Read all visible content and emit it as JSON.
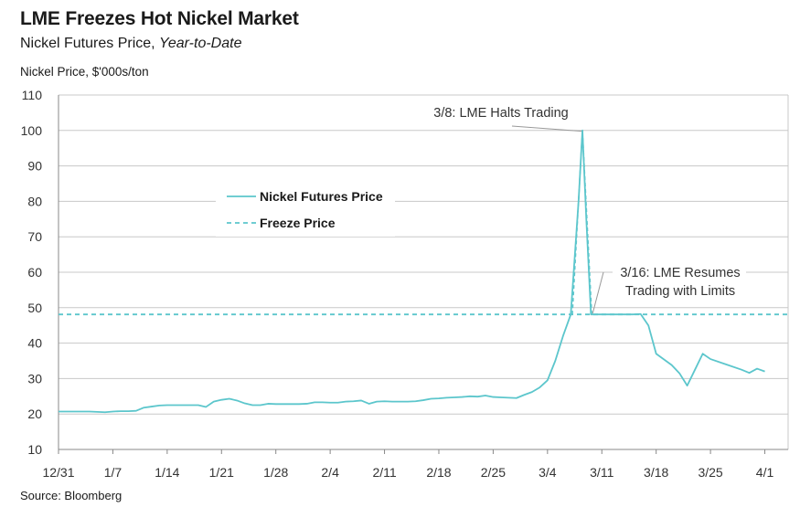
{
  "header": {
    "title": "LME Freezes Hot Nickel Market",
    "subtitle_main": "Nickel Futures Price, ",
    "subtitle_italic": "Year-to-Date",
    "y_axis_label": "Nickel Price, $'000s/ton",
    "source": "Source: Bloomberg"
  },
  "colors": {
    "series": "#5cc6cc",
    "grid": "#c8c8c8",
    "axis": "#888888",
    "annotation_line": "#999999"
  },
  "chart_data": {
    "type": "line",
    "title": "LME Freezes Hot Nickel Market",
    "subtitle": "Nickel Futures Price, Year-to-Date",
    "ylabel": "Nickel Price, $'000s/ton",
    "xlabel": "",
    "ylim": [
      10,
      110
    ],
    "yticks": [
      10,
      20,
      30,
      40,
      50,
      60,
      70,
      80,
      90,
      100,
      110
    ],
    "x_domain_days": [
      0,
      94
    ],
    "xticks": [
      {
        "day": 0,
        "label": "12/31"
      },
      {
        "day": 7,
        "label": "1/7"
      },
      {
        "day": 14,
        "label": "1/14"
      },
      {
        "day": 21,
        "label": "1/21"
      },
      {
        "day": 28,
        "label": "1/28"
      },
      {
        "day": 35,
        "label": "2/4"
      },
      {
        "day": 42,
        "label": "2/11"
      },
      {
        "day": 49,
        "label": "2/18"
      },
      {
        "day": 56,
        "label": "2/25"
      },
      {
        "day": 63,
        "label": "3/4"
      },
      {
        "day": 70,
        "label": "3/11"
      },
      {
        "day": 77,
        "label": "3/18"
      },
      {
        "day": 84,
        "label": "3/25"
      },
      {
        "day": 91,
        "label": "4/1"
      }
    ],
    "grid": true,
    "legend_position": "upper-left",
    "series": [
      {
        "name": "Nickel Futures Price",
        "style": "solid",
        "points": [
          [
            0,
            20.7
          ],
          [
            1,
            20.7
          ],
          [
            2,
            20.7
          ],
          [
            3,
            20.7
          ],
          [
            4,
            20.7
          ],
          [
            5,
            20.6
          ],
          [
            6,
            20.5
          ],
          [
            7,
            20.7
          ],
          [
            8,
            20.8
          ],
          [
            9,
            20.8
          ],
          [
            10,
            20.9
          ],
          [
            11,
            21.8
          ],
          [
            12,
            22.1
          ],
          [
            13,
            22.4
          ],
          [
            14,
            22.5
          ],
          [
            15,
            22.5
          ],
          [
            16,
            22.5
          ],
          [
            17,
            22.5
          ],
          [
            18,
            22.5
          ],
          [
            19,
            22.0
          ],
          [
            20,
            23.5
          ],
          [
            21,
            24.0
          ],
          [
            22,
            24.3
          ],
          [
            23,
            23.8
          ],
          [
            24,
            23.0
          ],
          [
            25,
            22.5
          ],
          [
            26,
            22.5
          ],
          [
            27,
            22.9
          ],
          [
            28,
            22.8
          ],
          [
            29,
            22.8
          ],
          [
            30,
            22.8
          ],
          [
            31,
            22.8
          ],
          [
            32,
            22.9
          ],
          [
            33,
            23.3
          ],
          [
            34,
            23.3
          ],
          [
            35,
            23.2
          ],
          [
            36,
            23.2
          ],
          [
            37,
            23.5
          ],
          [
            38,
            23.6
          ],
          [
            39,
            23.8
          ],
          [
            40,
            22.9
          ],
          [
            41,
            23.5
          ],
          [
            42,
            23.6
          ],
          [
            43,
            23.5
          ],
          [
            44,
            23.5
          ],
          [
            45,
            23.5
          ],
          [
            46,
            23.6
          ],
          [
            47,
            23.9
          ],
          [
            48,
            24.3
          ],
          [
            49,
            24.4
          ],
          [
            50,
            24.6
          ],
          [
            51,
            24.7
          ],
          [
            52,
            24.8
          ],
          [
            53,
            25.0
          ],
          [
            54,
            24.9
          ],
          [
            55,
            25.2
          ],
          [
            56,
            24.8
          ],
          [
            57,
            24.7
          ],
          [
            58,
            24.6
          ],
          [
            59,
            24.5
          ],
          [
            60,
            25.4
          ],
          [
            61,
            26.2
          ],
          [
            62,
            27.5
          ],
          [
            63,
            29.5
          ],
          [
            64,
            35.0
          ],
          [
            65,
            42.0
          ],
          [
            66,
            48.1
          ],
          [
            67,
            80.0
          ],
          [
            67.5,
            100.0
          ],
          [
            68,
            75.0
          ],
          [
            68.6,
            48.1
          ],
          [
            70,
            48.1
          ],
          [
            72,
            48.1
          ],
          [
            73,
            48.1
          ],
          [
            74,
            48.1
          ],
          [
            75,
            48.2
          ],
          [
            76,
            45.0
          ],
          [
            77,
            37.0
          ],
          [
            79,
            33.8
          ],
          [
            80,
            31.5
          ],
          [
            81,
            28.0
          ],
          [
            82,
            32.5
          ],
          [
            83,
            37.0
          ],
          [
            84,
            35.5
          ],
          [
            86,
            34.0
          ],
          [
            88,
            32.5
          ],
          [
            89,
            31.6
          ],
          [
            90,
            32.8
          ],
          [
            91,
            32.0
          ]
        ]
      },
      {
        "name": "Freeze Price",
        "style": "dashed",
        "horizontal_value": 48.1,
        "spike_points": [
          [
            66.2,
            48.1
          ],
          [
            67.5,
            100.0
          ],
          [
            68.7,
            48.1
          ]
        ]
      }
    ],
    "annotations": [
      {
        "text": "3/8: LME Halts Trading",
        "day": 67.5,
        "value": 100
      },
      {
        "text": "3/16: LME Resumes",
        "text2": "Trading with Limits",
        "day": 68.7,
        "value": 48.1
      }
    ]
  }
}
